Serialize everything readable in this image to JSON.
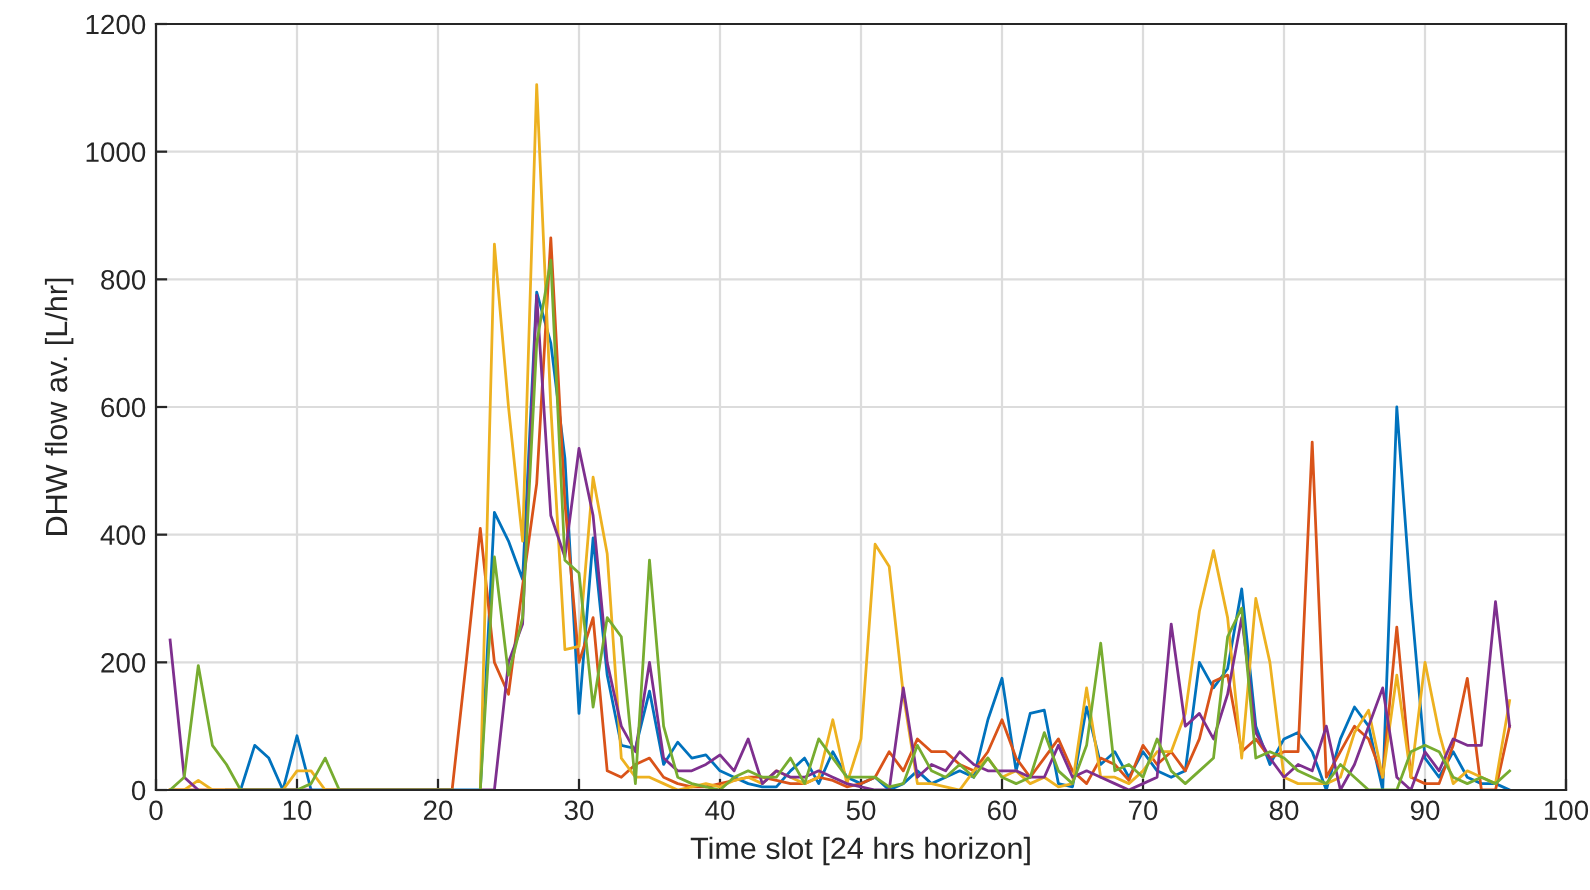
{
  "chart_data": {
    "type": "line",
    "xlabel": "Time slot [24 hrs horizon]",
    "ylabel": "DHW flow av. [L/hr]",
    "x": [
      1,
      2,
      3,
      4,
      5,
      6,
      7,
      8,
      9,
      10,
      11,
      12,
      13,
      14,
      15,
      16,
      17,
      18,
      19,
      20,
      21,
      22,
      23,
      24,
      25,
      26,
      27,
      28,
      29,
      30,
      31,
      32,
      33,
      34,
      35,
      36,
      37,
      38,
      39,
      40,
      41,
      42,
      43,
      44,
      45,
      46,
      47,
      48,
      49,
      50,
      51,
      52,
      53,
      54,
      55,
      56,
      57,
      58,
      59,
      60,
      61,
      62,
      63,
      64,
      65,
      66,
      67,
      68,
      69,
      70,
      71,
      72,
      73,
      74,
      75,
      76,
      77,
      78,
      79,
      80,
      81,
      82,
      83,
      84,
      85,
      86,
      87,
      88,
      89,
      90,
      91,
      92,
      93,
      94,
      95,
      96
    ],
    "xlim": [
      0,
      100
    ],
    "xticks": [
      0,
      10,
      20,
      30,
      40,
      50,
      60,
      70,
      80,
      90,
      100
    ],
    "ylim": [
      0,
      1200
    ],
    "yticks": [
      0,
      200,
      400,
      600,
      800,
      1000,
      1200
    ],
    "grid": true,
    "marker": "none",
    "line_style": "solid",
    "series": [
      {
        "color": "#0072bd",
        "values": [
          null,
          null,
          null,
          null,
          0,
          0,
          70,
          50,
          0,
          85,
          0,
          0,
          0,
          0,
          0,
          0,
          0,
          0,
          0,
          0,
          0,
          0,
          0,
          435,
          390,
          330,
          780,
          700,
          520,
          120,
          395,
          180,
          70,
          65,
          155,
          40,
          75,
          50,
          55,
          30,
          20,
          10,
          5,
          5,
          30,
          50,
          10,
          60,
          20,
          10,
          20,
          0,
          10,
          30,
          10,
          20,
          30,
          20,
          110,
          175,
          30,
          120,
          125,
          10,
          5,
          130,
          40,
          60,
          20,
          60,
          30,
          20,
          30,
          200,
          160,
          190,
          315,
          100,
          40,
          80,
          90,
          60,
          0,
          80,
          130,
          100,
          0,
          600,
          300,
          50,
          20,
          60,
          20,
          10,
          10,
          0
        ]
      },
      {
        "color": "#d95319",
        "values": [
          0,
          0,
          0,
          0,
          0,
          0,
          0,
          0,
          0,
          0,
          null,
          0,
          0,
          0,
          0,
          0,
          0,
          0,
          0,
          0,
          0,
          200,
          410,
          200,
          150,
          320,
          480,
          865,
          450,
          200,
          270,
          30,
          20,
          40,
          50,
          20,
          10,
          5,
          5,
          10,
          15,
          20,
          20,
          15,
          10,
          10,
          20,
          15,
          5,
          10,
          20,
          60,
          30,
          80,
          60,
          60,
          40,
          30,
          60,
          110,
          50,
          20,
          50,
          80,
          30,
          10,
          50,
          40,
          15,
          70,
          40,
          60,
          30,
          80,
          170,
          180,
          60,
          80,
          50,
          60,
          60,
          545,
          20,
          60,
          100,
          80,
          20,
          255,
          20,
          10,
          10,
          70,
          175,
          0,
          0,
          100
        ]
      },
      {
        "color": "#edb120",
        "values": [
          0,
          0,
          15,
          0,
          0,
          0,
          0,
          0,
          0,
          30,
          30,
          0,
          0,
          0,
          0,
          0,
          0,
          0,
          0,
          0,
          0,
          null,
          0,
          855,
          600,
          390,
          1105,
          600,
          220,
          225,
          490,
          370,
          50,
          20,
          20,
          10,
          0,
          5,
          10,
          5,
          15,
          20,
          10,
          30,
          20,
          10,
          20,
          110,
          10,
          80,
          385,
          350,
          150,
          10,
          10,
          5,
          0,
          30,
          50,
          20,
          30,
          10,
          20,
          5,
          10,
          160,
          20,
          20,
          10,
          30,
          60,
          60,
          120,
          280,
          375,
          270,
          50,
          300,
          200,
          20,
          10,
          10,
          10,
          20,
          90,
          125,
          20,
          180,
          20,
          200,
          90,
          10,
          30,
          20,
          10,
          140
        ]
      },
      {
        "color": "#7e2f8e",
        "values": [
          235,
          20,
          0,
          null,
          null,
          0,
          0,
          0,
          0,
          0,
          0,
          null,
          0,
          0,
          0,
          0,
          0,
          0,
          0,
          0,
          0,
          null,
          0,
          0,
          200,
          260,
          775,
          430,
          365,
          535,
          430,
          200,
          100,
          60,
          200,
          50,
          30,
          30,
          40,
          55,
          30,
          80,
          10,
          30,
          20,
          20,
          30,
          20,
          10,
          5,
          0,
          0,
          160,
          20,
          40,
          30,
          60,
          40,
          30,
          30,
          30,
          20,
          20,
          70,
          20,
          30,
          20,
          10,
          0,
          10,
          20,
          260,
          100,
          120,
          80,
          150,
          270,
          90,
          50,
          20,
          40,
          30,
          100,
          0,
          40,
          100,
          160,
          20,
          0,
          60,
          30,
          80,
          70,
          70,
          295,
          100
        ]
      },
      {
        "color": "#77ac30",
        "values": [
          0,
          20,
          195,
          70,
          40,
          0,
          0,
          0,
          0,
          0,
          10,
          50,
          0,
          0,
          0,
          0,
          0,
          0,
          0,
          0,
          0,
          null,
          0,
          365,
          180,
          270,
          700,
          830,
          360,
          340,
          130,
          270,
          240,
          10,
          360,
          100,
          20,
          10,
          5,
          0,
          20,
          30,
          20,
          20,
          50,
          10,
          80,
          50,
          20,
          20,
          20,
          5,
          10,
          70,
          30,
          20,
          40,
          20,
          50,
          20,
          10,
          20,
          90,
          30,
          10,
          70,
          230,
          30,
          40,
          20,
          80,
          30,
          10,
          30,
          50,
          240,
          285,
          50,
          60,
          50,
          30,
          20,
          10,
          40,
          20,
          0,
          0,
          0,
          60,
          70,
          60,
          20,
          10,
          20,
          10,
          30
        ]
      }
    ]
  }
}
